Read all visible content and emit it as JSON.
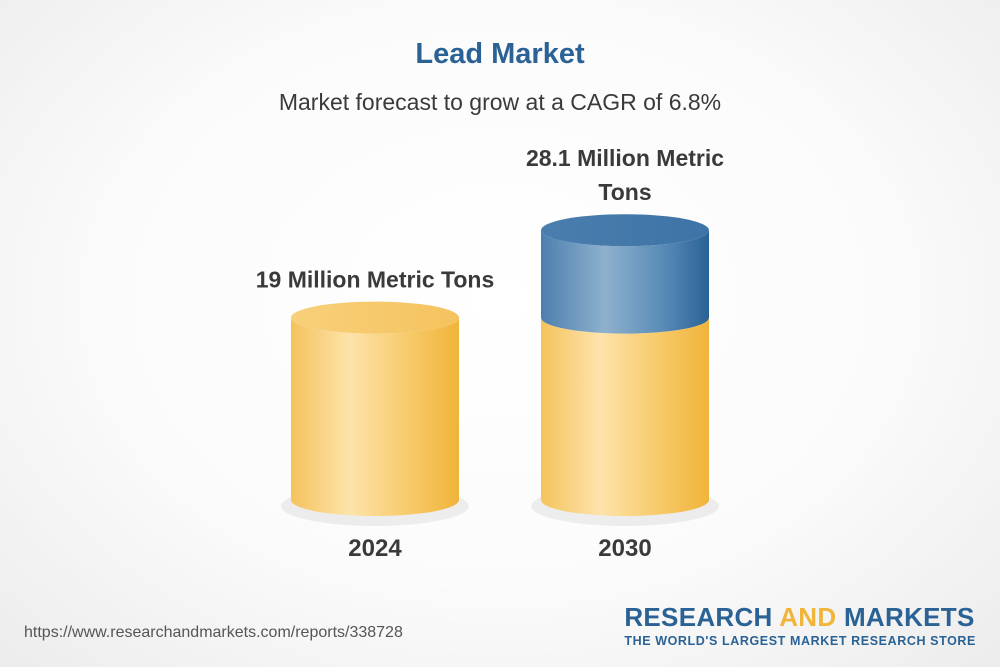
{
  "chart_data": {
    "type": "bar",
    "title": "Lead Market",
    "subtitle": "Market forecast to grow at a CAGR of 6.8%",
    "categories": [
      "2024",
      "2030"
    ],
    "values": [
      19,
      28.1
    ],
    "unit": "Million Metric Tons",
    "data_labels": [
      "19 Million Metric Tons",
      "28.1 Million Metric Tons"
    ],
    "colors": {
      "base": "#f5c862",
      "growth": "#4f86b5"
    }
  },
  "footer": {
    "url": "https://www.researchandmarkets.com/reports/338728",
    "brand_research": "RESEARCH",
    "brand_and": "AND",
    "brand_markets": "MARKETS",
    "tagline": "THE WORLD'S LARGEST MARKET RESEARCH STORE"
  }
}
